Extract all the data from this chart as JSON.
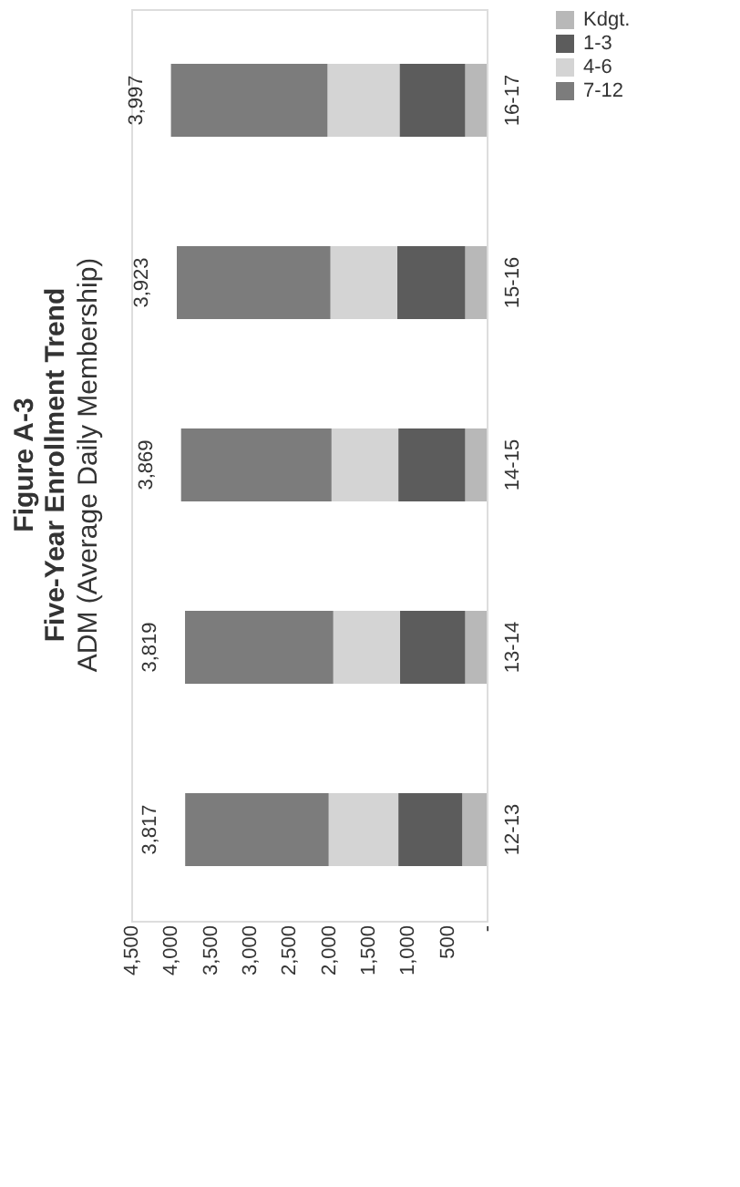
{
  "chart_data": {
    "type": "bar",
    "title": "Figure A-3\nFive-Year Enrollment Trend",
    "subtitle": "ADM (Average Daily Membership)",
    "orientation": "horizontal",
    "stacked": true,
    "categories": [
      "16-17",
      "15-16",
      "14-15",
      "13-14",
      "12-13"
    ],
    "series": [
      {
        "name": "Kdgt.",
        "color": "#b8b8b8",
        "values": [
          272,
          272,
          272,
          272,
          309
        ]
      },
      {
        "name": "1-3",
        "color": "#5c5c5c",
        "values": [
          831,
          860,
          846,
          824,
          809
        ]
      },
      {
        "name": "4-6",
        "color": "#d4d4d4",
        "values": [
          912,
          846,
          846,
          846,
          882
        ]
      },
      {
        "name": "7-12",
        "color": "#7c7c7c",
        "values": [
          1982,
          1945,
          1905,
          1877,
          1817
        ]
      }
    ],
    "totals": [
      "3,997",
      "3,923",
      "3,869",
      "3,819",
      "3,817"
    ],
    "xlim": [
      4500,
      0
    ],
    "xticks": [
      {
        "value": 0,
        "label": "-"
      },
      500,
      {
        "value": 1000,
        "label": "1,000"
      },
      {
        "value": 1500,
        "label": "1,500"
      },
      {
        "value": 2000,
        "label": "2,000"
      },
      {
        "value": 2500,
        "label": "2,500"
      },
      {
        "value": 3000,
        "label": "3,000"
      },
      {
        "value": 3500,
        "label": "3,500"
      },
      {
        "value": 4000,
        "label": "4,000"
      },
      {
        "value": 4500,
        "label": "4,500"
      }
    ],
    "grid": false,
    "legend": "right"
  }
}
